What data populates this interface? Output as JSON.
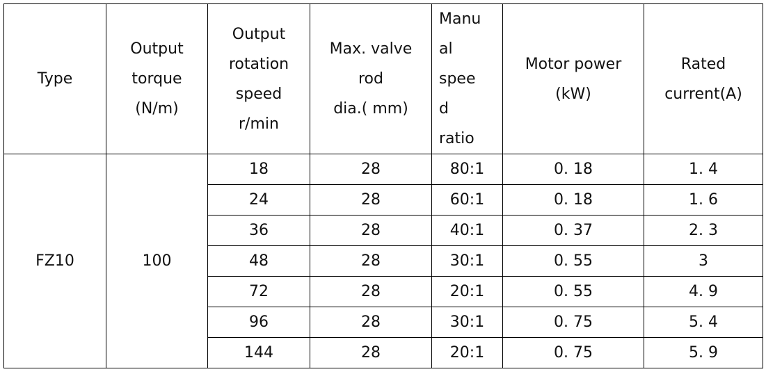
{
  "table": {
    "header": [
      [
        "Type"
      ],
      [
        "Output",
        "torque",
        "(N/m)"
      ],
      [
        "Output",
        "rotation",
        "speed",
        "r/min"
      ],
      [
        "Max. valve",
        "rod",
        "dia.( mm)"
      ],
      [
        "Manu",
        "al",
        "spee",
        "d",
        "ratio"
      ],
      [
        "Motor power",
        "(kW)"
      ],
      [
        "Rated",
        "current(A)"
      ]
    ],
    "type": "FZ10",
    "torque": "100",
    "rows": [
      [
        "18",
        "28",
        "80:1",
        "0. 18",
        "1. 4"
      ],
      [
        "24",
        "28",
        "60:1",
        "0. 18",
        "1. 6"
      ],
      [
        "36",
        "28",
        "40:1",
        "0. 37",
        "2. 3"
      ],
      [
        "48",
        "28",
        "30:1",
        "0. 55",
        "3"
      ],
      [
        "72",
        "28",
        "20:1",
        "0. 55",
        "4. 9"
      ],
      [
        "96",
        "28",
        "30:1",
        "0. 75",
        "5. 4"
      ],
      [
        "144",
        "28",
        "20:1",
        "0. 75",
        "5. 9"
      ]
    ]
  }
}
